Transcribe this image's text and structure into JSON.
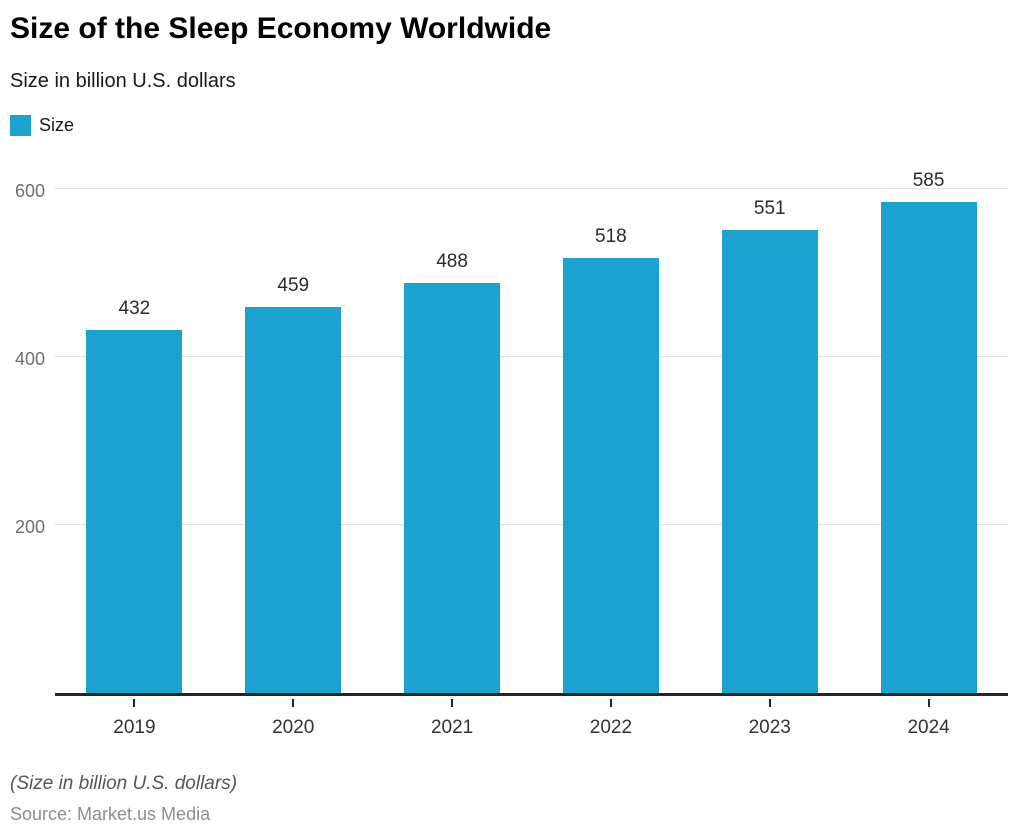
{
  "header": {
    "title": "Size of the Sleep Economy Worldwide",
    "subtitle": "Size in billion U.S. dollars"
  },
  "legend": {
    "label": "Size",
    "color": "#1ba2cf"
  },
  "chart_data": {
    "type": "bar",
    "title": "Size of the Sleep Economy Worldwide",
    "subtitle": "Size in billion U.S. dollars",
    "categories": [
      "2019",
      "2020",
      "2021",
      "2022",
      "2023",
      "2024"
    ],
    "series": [
      {
        "name": "Size",
        "values": [
          432,
          459,
          488,
          518,
          551,
          585
        ]
      }
    ],
    "xlabel": "",
    "ylabel": "Size in billion U.S. dollars",
    "ylim": [
      0,
      650
    ],
    "yticks": [
      200,
      400,
      600
    ],
    "grid": true,
    "legend_position": "top-left",
    "value_labels": true
  },
  "footer": {
    "note": "(Size in billion U.S. dollars)",
    "source": "Source: Market.us Media"
  },
  "colors": {
    "bar": "#1ba2cf",
    "grid": "#e0e0e0",
    "axis": "#262626",
    "ytick_text": "#6e6e6e",
    "xtick_text": "#333333",
    "value_text": "#2b2b2b",
    "note_text": "#555555",
    "source_text": "#8e8e8e"
  }
}
